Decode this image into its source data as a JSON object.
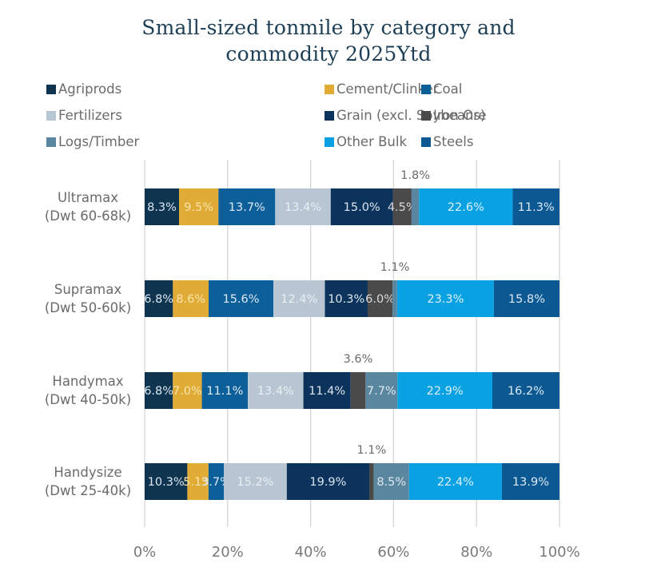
{
  "chart_data": {
    "type": "bar",
    "orientation": "horizontal",
    "stacked": "100%",
    "title": "Small-sized tonmile by category and commodity 2025Ytd",
    "title_lines": [
      "Small-sized tonmile by category and",
      "commodity 2025Ytd"
    ],
    "xlabel": "",
    "ylabel": "",
    "xlim": [
      0,
      100
    ],
    "x_ticks": [
      "0%",
      "20%",
      "40%",
      "60%",
      "80%",
      "100%"
    ],
    "x_tick_values": [
      0,
      20,
      40,
      60,
      80,
      100
    ],
    "grid": "vertical",
    "legend_position": "top",
    "categories": [
      {
        "line1": "Ultramax",
        "line2": "(Dwt 60-68k)"
      },
      {
        "line1": "Supramax",
        "line2": "(Dwt 50-60k)"
      },
      {
        "line1": "Handymax",
        "line2": "(Dwt 40-50k)"
      },
      {
        "line1": "Handysize",
        "line2": "(Dwt 25-40k)"
      }
    ],
    "series": [
      {
        "name": "Agriprods",
        "color": "#0f3450",
        "label_color": "#dbe6f0",
        "values": [
          8.3,
          6.8,
          6.8,
          10.3
        ]
      },
      {
        "name": "Cement/Clinker",
        "color": "#e1ac35",
        "label_color": "#f7e2ac",
        "values": [
          9.5,
          8.6,
          7.0,
          5.1
        ]
      },
      {
        "name": "Coal",
        "color": "#0d5f99",
        "label_color": "#dce9f4",
        "values": [
          13.7,
          15.6,
          11.1,
          3.7
        ]
      },
      {
        "name": "Fertilizers",
        "color": "#b7c6d2",
        "label_color": "#e9eff4",
        "values": [
          13.4,
          12.4,
          13.4,
          15.2
        ]
      },
      {
        "name": "Grain (excl. Soybeans)",
        "color": "#0b335c",
        "label_color": "#dbe6f0",
        "values": [
          15.0,
          10.3,
          11.4,
          19.9
        ]
      },
      {
        "name": "Iron Ore",
        "color": "#4a4a4a",
        "label_color": "#dcdcdc",
        "values": [
          4.5,
          6.0,
          3.6,
          1.1
        ]
      },
      {
        "name": "Logs/Timber",
        "color": "#5a879f",
        "label_color": "#dbe8ef",
        "values": [
          1.8,
          1.1,
          7.7,
          8.5
        ]
      },
      {
        "name": "Other Bulk",
        "color": "#0aa1e3",
        "label_color": "#d9f1fc",
        "values": [
          22.6,
          23.3,
          22.9,
          22.4
        ]
      },
      {
        "name": "Steels",
        "color": "#0b5892",
        "label_color": "#dce9f4",
        "values": [
          11.3,
          15.8,
          16.2,
          13.9
        ]
      }
    ],
    "data_labels": [
      [
        "8.3%",
        "9.5%",
        "13.7%",
        "13.4%",
        "15.0%",
        "4.5%",
        "1.8%",
        "22.6%",
        "11.3%"
      ],
      [
        "6.8%",
        "8.6%",
        "15.6%",
        "12.4%",
        "10.3%",
        "6.0%",
        "1.1%",
        "23.3%",
        "15.8%"
      ],
      [
        "6.8%",
        "7.0%",
        "11.1%",
        "13.4%",
        "11.4%",
        "3.6%",
        "7.7%",
        "22.9%",
        "16.2%"
      ],
      [
        "10.3%",
        "5.1%",
        "3.7%",
        "15.2%",
        "19.9%",
        "1.1%",
        "8.5%",
        "22.4%",
        "13.9%"
      ]
    ],
    "outside_labels": [
      {
        "row": 0,
        "series": 6,
        "text": "1.8%"
      },
      {
        "row": 1,
        "series": 6,
        "text": "1.1%"
      },
      {
        "row": 2,
        "series": 5,
        "text": "3.6%"
      },
      {
        "row": 3,
        "series": 5,
        "text": "1.1%"
      }
    ]
  }
}
